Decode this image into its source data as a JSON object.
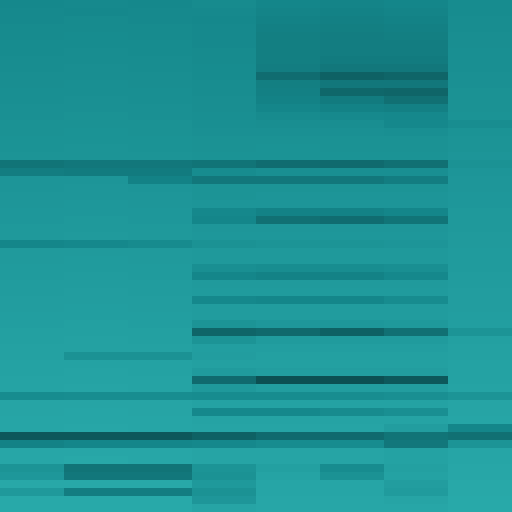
{
  "chart_data": {
    "type": "heatmap",
    "tick_labels": false,
    "zlim": [
      0,
      1
    ],
    "cells": [
      [
        0.52,
        0.53,
        0.52,
        0.54,
        0.5,
        0.49,
        0.5,
        0.55
      ],
      [
        0.53,
        0.52,
        0.53,
        0.53,
        0.49,
        0.48,
        0.49,
        0.55
      ],
      [
        0.53,
        0.54,
        0.53,
        0.52,
        0.48,
        0.47,
        0.48,
        0.56
      ],
      [
        0.54,
        0.54,
        0.54,
        0.53,
        0.47,
        0.46,
        0.47,
        0.56
      ],
      [
        0.54,
        0.55,
        0.54,
        0.53,
        0.46,
        0.45,
        0.46,
        0.57
      ],
      [
        0.55,
        0.55,
        0.55,
        0.53,
        0.46,
        0.45,
        0.45,
        0.57
      ],
      [
        0.55,
        0.56,
        0.55,
        0.54,
        0.46,
        0.45,
        0.45,
        0.58
      ],
      [
        0.56,
        0.56,
        0.56,
        0.54,
        0.46,
        0.44,
        0.44,
        0.58
      ],
      [
        0.56,
        0.57,
        0.56,
        0.55,
        0.45,
        0.42,
        0.42,
        0.58
      ],
      [
        0.57,
        0.57,
        0.57,
        0.55,
        0.36,
        0.3,
        0.32,
        0.59
      ],
      [
        0.57,
        0.58,
        0.57,
        0.56,
        0.46,
        0.42,
        0.42,
        0.59
      ],
      [
        0.58,
        0.58,
        0.58,
        0.56,
        0.47,
        0.33,
        0.32,
        0.6
      ],
      [
        0.58,
        0.59,
        0.58,
        0.57,
        0.48,
        0.44,
        0.38,
        0.6
      ],
      [
        0.59,
        0.59,
        0.59,
        0.57,
        0.5,
        0.48,
        0.47,
        0.6
      ],
      [
        0.59,
        0.6,
        0.59,
        0.58,
        0.54,
        0.53,
        0.52,
        0.61
      ],
      [
        0.6,
        0.6,
        0.6,
        0.58,
        0.57,
        0.57,
        0.52,
        0.56
      ],
      [
        0.6,
        0.61,
        0.6,
        0.59,
        0.59,
        0.59,
        0.58,
        0.61
      ],
      [
        0.61,
        0.61,
        0.61,
        0.6,
        0.6,
        0.6,
        0.6,
        0.62
      ],
      [
        0.61,
        0.62,
        0.61,
        0.6,
        0.61,
        0.6,
        0.6,
        0.62
      ],
      [
        0.62,
        0.62,
        0.62,
        0.61,
        0.61,
        0.61,
        0.61,
        0.63
      ],
      [
        0.4,
        0.42,
        0.42,
        0.4,
        0.36,
        0.35,
        0.38,
        0.6
      ],
      [
        0.45,
        0.44,
        0.44,
        0.55,
        0.58,
        0.58,
        0.58,
        0.63
      ],
      [
        0.63,
        0.63,
        0.48,
        0.42,
        0.42,
        0.42,
        0.45,
        0.64
      ],
      [
        0.63,
        0.64,
        0.63,
        0.62,
        0.62,
        0.62,
        0.62,
        0.64
      ],
      [
        0.64,
        0.64,
        0.64,
        0.62,
        0.63,
        0.63,
        0.63,
        0.65
      ],
      [
        0.64,
        0.65,
        0.64,
        0.63,
        0.63,
        0.63,
        0.63,
        0.65
      ],
      [
        0.65,
        0.65,
        0.65,
        0.52,
        0.48,
        0.48,
        0.5,
        0.66
      ],
      [
        0.65,
        0.66,
        0.65,
        0.5,
        0.38,
        0.36,
        0.4,
        0.66
      ],
      [
        0.66,
        0.66,
        0.66,
        0.64,
        0.64,
        0.64,
        0.64,
        0.66
      ],
      [
        0.66,
        0.67,
        0.66,
        0.65,
        0.65,
        0.65,
        0.65,
        0.67
      ],
      [
        0.5,
        0.52,
        0.54,
        0.6,
        0.62,
        0.62,
        0.63,
        0.67
      ],
      [
        0.67,
        0.67,
        0.67,
        0.66,
        0.66,
        0.66,
        0.66,
        0.68
      ],
      [
        0.67,
        0.68,
        0.67,
        0.66,
        0.66,
        0.66,
        0.66,
        0.68
      ],
      [
        0.68,
        0.68,
        0.68,
        0.58,
        0.56,
        0.56,
        0.58,
        0.68
      ],
      [
        0.68,
        0.69,
        0.68,
        0.5,
        0.48,
        0.48,
        0.52,
        0.69
      ],
      [
        0.69,
        0.69,
        0.69,
        0.67,
        0.67,
        0.67,
        0.67,
        0.69
      ],
      [
        0.69,
        0.7,
        0.69,
        0.68,
        0.68,
        0.68,
        0.68,
        0.7
      ],
      [
        0.7,
        0.7,
        0.7,
        0.52,
        0.5,
        0.5,
        0.55,
        0.7
      ],
      [
        0.7,
        0.71,
        0.7,
        0.69,
        0.69,
        0.69,
        0.69,
        0.7
      ],
      [
        0.71,
        0.71,
        0.71,
        0.69,
        0.69,
        0.69,
        0.69,
        0.71
      ],
      [
        0.71,
        0.72,
        0.71,
        0.62,
        0.65,
        0.65,
        0.66,
        0.71
      ],
      [
        0.72,
        0.72,
        0.72,
        0.32,
        0.34,
        0.3,
        0.38,
        0.62
      ],
      [
        0.72,
        0.73,
        0.72,
        0.62,
        0.68,
        0.68,
        0.68,
        0.72
      ],
      [
        0.73,
        0.73,
        0.73,
        0.71,
        0.71,
        0.71,
        0.71,
        0.73
      ],
      [
        0.73,
        0.6,
        0.6,
        0.7,
        0.72,
        0.72,
        0.72,
        0.73
      ],
      [
        0.74,
        0.74,
        0.74,
        0.72,
        0.72,
        0.72,
        0.72,
        0.74
      ],
      [
        0.74,
        0.75,
        0.74,
        0.68,
        0.7,
        0.7,
        0.7,
        0.74
      ],
      [
        0.75,
        0.75,
        0.75,
        0.35,
        0.2,
        0.2,
        0.25,
        0.74
      ],
      [
        0.75,
        0.76,
        0.75,
        0.66,
        0.7,
        0.7,
        0.7,
        0.75
      ],
      [
        0.55,
        0.56,
        0.56,
        0.55,
        0.55,
        0.56,
        0.58,
        0.62
      ],
      [
        0.76,
        0.76,
        0.76,
        0.74,
        0.74,
        0.74,
        0.74,
        0.76
      ],
      [
        0.76,
        0.77,
        0.76,
        0.52,
        0.52,
        0.54,
        0.58,
        0.76
      ],
      [
        0.77,
        0.77,
        0.77,
        0.75,
        0.75,
        0.75,
        0.75,
        0.77
      ],
      [
        0.77,
        0.78,
        0.77,
        0.76,
        0.76,
        0.76,
        0.7,
        0.5
      ],
      [
        0.25,
        0.25,
        0.25,
        0.3,
        0.35,
        0.35,
        0.4,
        0.38
      ],
      [
        0.48,
        0.5,
        0.5,
        0.52,
        0.55,
        0.55,
        0.42,
        0.62
      ],
      [
        0.78,
        0.78,
        0.78,
        0.76,
        0.76,
        0.76,
        0.74,
        0.77
      ],
      [
        0.78,
        0.79,
        0.78,
        0.76,
        0.76,
        0.76,
        0.74,
        0.77
      ],
      [
        0.62,
        0.4,
        0.4,
        0.62,
        0.72,
        0.55,
        0.72,
        0.78
      ],
      [
        0.65,
        0.42,
        0.42,
        0.6,
        0.75,
        0.6,
        0.74,
        0.78
      ],
      [
        0.79,
        0.79,
        0.79,
        0.66,
        0.77,
        0.77,
        0.7,
        0.79
      ],
      [
        0.66,
        0.45,
        0.45,
        0.6,
        0.77,
        0.77,
        0.68,
        0.79
      ],
      [
        0.8,
        0.8,
        0.8,
        0.64,
        0.78,
        0.78,
        0.76,
        0.8
      ],
      [
        0.8,
        0.8,
        0.8,
        0.76,
        0.78,
        0.78,
        0.78,
        0.8
      ]
    ]
  }
}
